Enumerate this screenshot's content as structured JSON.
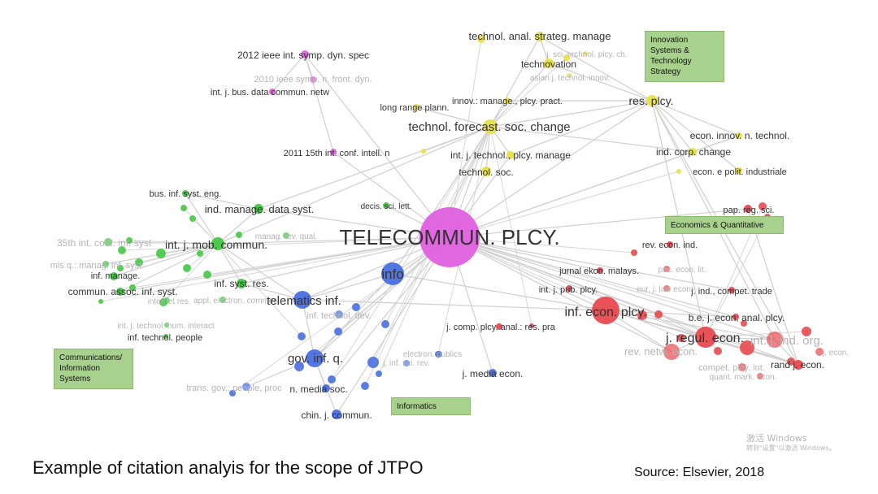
{
  "caption": "Example of citation analyis for the scope of JTPO",
  "source": "Source: Elsevier, 2018",
  "watermark": {
    "line1": "激活 Windows",
    "line2": "转到\"设置\"以激活 Windows。"
  },
  "clusters": [
    {
      "id": "innovation",
      "label": "Innovation Systems & Technology Strategy",
      "lines": [
        "Innovation",
        "Systems &",
        "Technology",
        "Strategy"
      ],
      "color": "#e6e043"
    },
    {
      "id": "economics",
      "label": "Economics & Quantitative",
      "lines": [
        "Economics & Quantitative"
      ],
      "color": "#e8494f"
    },
    {
      "id": "communications",
      "label": "Communications/ Information Systems",
      "lines": [
        "Communications/",
        "Information",
        "Systems"
      ],
      "color": "#45c845"
    },
    {
      "id": "informatics",
      "label": "Informatics",
      "lines": [
        "Informatics"
      ],
      "color": "#4a6fe0"
    },
    {
      "id": "telecom",
      "label": "Telecommunications Policy",
      "lines": [],
      "color": "#e060e0"
    }
  ],
  "nodes": [
    {
      "id": "telecommun",
      "label": "TELECOMMUN. PLCY.",
      "cluster": "telecom"
    },
    {
      "id": "ieee2012",
      "label": "2012 ieee int. symp. dyn. spec",
      "cluster": "telecom"
    },
    {
      "id": "ieee2010",
      "label": "2010 ieee symp. n. front. dyn.",
      "cluster": "telecom",
      "faded": true
    },
    {
      "id": "busdata",
      "label": "int. j. bus. data commun. netw",
      "cluster": "telecom"
    },
    {
      "id": "conf2011",
      "label": "2011 15th int. conf. intell. n",
      "cluster": "telecom"
    },
    {
      "id": "strateg",
      "label": "technol. anal. strateg. manage",
      "cluster": "innovation"
    },
    {
      "id": "technovation",
      "label": "technovation",
      "cluster": "innovation"
    },
    {
      "id": "jsci",
      "label": "j. sci. technol. plcy. ch.",
      "cluster": "innovation",
      "faded": true
    },
    {
      "id": "asianj",
      "label": "asian j. technol. innov.",
      "cluster": "innovation",
      "faded": true
    },
    {
      "id": "longrange",
      "label": "long range plann.",
      "cluster": "innovation"
    },
    {
      "id": "innovmanage",
      "label": "innov.: manage., plcy. pract.",
      "cluster": "innovation"
    },
    {
      "id": "resplcy",
      "label": "res. plcy.",
      "cluster": "innovation"
    },
    {
      "id": "forecast",
      "label": "technol. forecast. soc. change",
      "cluster": "innovation"
    },
    {
      "id": "econinnov",
      "label": "econ. innov. n. technol.",
      "cluster": "innovation"
    },
    {
      "id": "indcorp",
      "label": "ind. corp. change",
      "cluster": "innovation"
    },
    {
      "id": "ijtechplcy",
      "label": "int. j. technol., plcy. manage",
      "cluster": "innovation"
    },
    {
      "id": "technolsoc",
      "label": "technol. soc.",
      "cluster": "innovation"
    },
    {
      "id": "econpolit",
      "label": "econ. e polit. industriale",
      "cluster": "innovation"
    },
    {
      "id": "businf",
      "label": "bus. inf. syst. eng.",
      "cluster": "communications"
    },
    {
      "id": "indmanage",
      "label": "ind. manage. data syst.",
      "cluster": "communications"
    },
    {
      "id": "decis",
      "label": "decis. sci. lett.",
      "cluster": "communications"
    },
    {
      "id": "conf35",
      "label": "35th int. conf. inf. syst",
      "cluster": "communications",
      "faded": true
    },
    {
      "id": "mobcommun",
      "label": "int. j. mob. commun.",
      "cluster": "communications"
    },
    {
      "id": "manageq",
      "label": "manag. rev. qual.",
      "cluster": "communications",
      "faded": true
    },
    {
      "id": "misq",
      "label": "mis q.: manag. inf. syst",
      "cluster": "communications",
      "faded": true
    },
    {
      "id": "infmanage",
      "label": "inf. manage.",
      "cluster": "communications"
    },
    {
      "id": "infsystres",
      "label": "inf. syst. res.",
      "cluster": "communications"
    },
    {
      "id": "communassoc",
      "label": "commun. assoc. inf. syst.",
      "cluster": "communications"
    },
    {
      "id": "internetres",
      "label": "internet res.",
      "cluster": "communications",
      "faded": true
    },
    {
      "id": "applecommerce",
      "label": "appl. electron. commer.",
      "cluster": "communications",
      "faded": true
    },
    {
      "id": "humint",
      "label": "int. j. technol. hum. interact",
      "cluster": "communications",
      "faded": true
    },
    {
      "id": "inftechpeople",
      "label": "inf. technol. people",
      "cluster": "communications"
    },
    {
      "id": "info",
      "label": "info",
      "cluster": "informatics"
    },
    {
      "id": "telematics",
      "label": "telematics inf.",
      "cluster": "informatics"
    },
    {
      "id": "inftechdev",
      "label": "inf. technol. dev.",
      "cluster": "informatics",
      "faded": true
    },
    {
      "id": "govinf",
      "label": "gov. inf. q.",
      "cluster": "informatics"
    },
    {
      "id": "transgov",
      "label": "trans. gov.: people, proc",
      "cluster": "informatics",
      "faded": true
    },
    {
      "id": "newmedia",
      "label": "n. media soc.",
      "cluster": "informatics"
    },
    {
      "id": "chinaj",
      "label": "chin. j. commun.",
      "cluster": "informatics"
    },
    {
      "id": "jmediaecon",
      "label": "j. media econ.",
      "cluster": "informatics"
    },
    {
      "id": "inforesrev",
      "label": "j. inf. sci. rev.",
      "cluster": "informatics",
      "faded": true
    },
    {
      "id": "hum",
      "label": "electron. publics",
      "cluster": "informatics",
      "faded": true
    },
    {
      "id": "papreg",
      "label": "pap. reg. sci.",
      "cluster": "economics"
    },
    {
      "id": "revecon",
      "label": "rev. econ. ind.",
      "cluster": "economics"
    },
    {
      "id": "jurnal",
      "label": "jurnal ekon. malays.",
      "cluster": "economics"
    },
    {
      "id": "paecon",
      "label": "pac. econ. lit.",
      "cluster": "economics",
      "faded": true
    },
    {
      "id": "pubplcy",
      "label": "int. j. pub. plcy.",
      "cluster": "economics"
    },
    {
      "id": "eurlaw",
      "label": "eur. j. law econ.",
      "cluster": "economics",
      "faded": true
    },
    {
      "id": "indcompet",
      "label": "j. ind., compet. trade",
      "cluster": "economics"
    },
    {
      "id": "infecon",
      "label": "inf. econ. plcy.",
      "cluster": "economics"
    },
    {
      "id": "bejecon",
      "label": "b.e. j. econ. anal. plcy.",
      "cluster": "economics"
    },
    {
      "id": "jcomp",
      "label": "j. comp. plcy. anal.: res. pra",
      "cluster": "economics"
    },
    {
      "id": "jregul",
      "label": "j. regul. econ.",
      "cluster": "economics"
    },
    {
      "id": "indorg",
      "label": "int. j. ind. org.",
      "cluster": "economics",
      "faded": true
    },
    {
      "id": "revnetw",
      "label": "rev. netw. econ.",
      "cluster": "economics",
      "faded": true
    },
    {
      "id": "competplcy",
      "label": "compet. plcy. int.",
      "cluster": "economics",
      "faded": true
    },
    {
      "id": "randj",
      "label": "rand j. econ.",
      "cluster": "economics"
    },
    {
      "id": "quantecon",
      "label": "quant. mark. econ.",
      "cluster": "economics",
      "faded": true
    },
    {
      "id": "econadd",
      "label": "j. econ.",
      "cluster": "economics",
      "faded": true
    }
  ]
}
